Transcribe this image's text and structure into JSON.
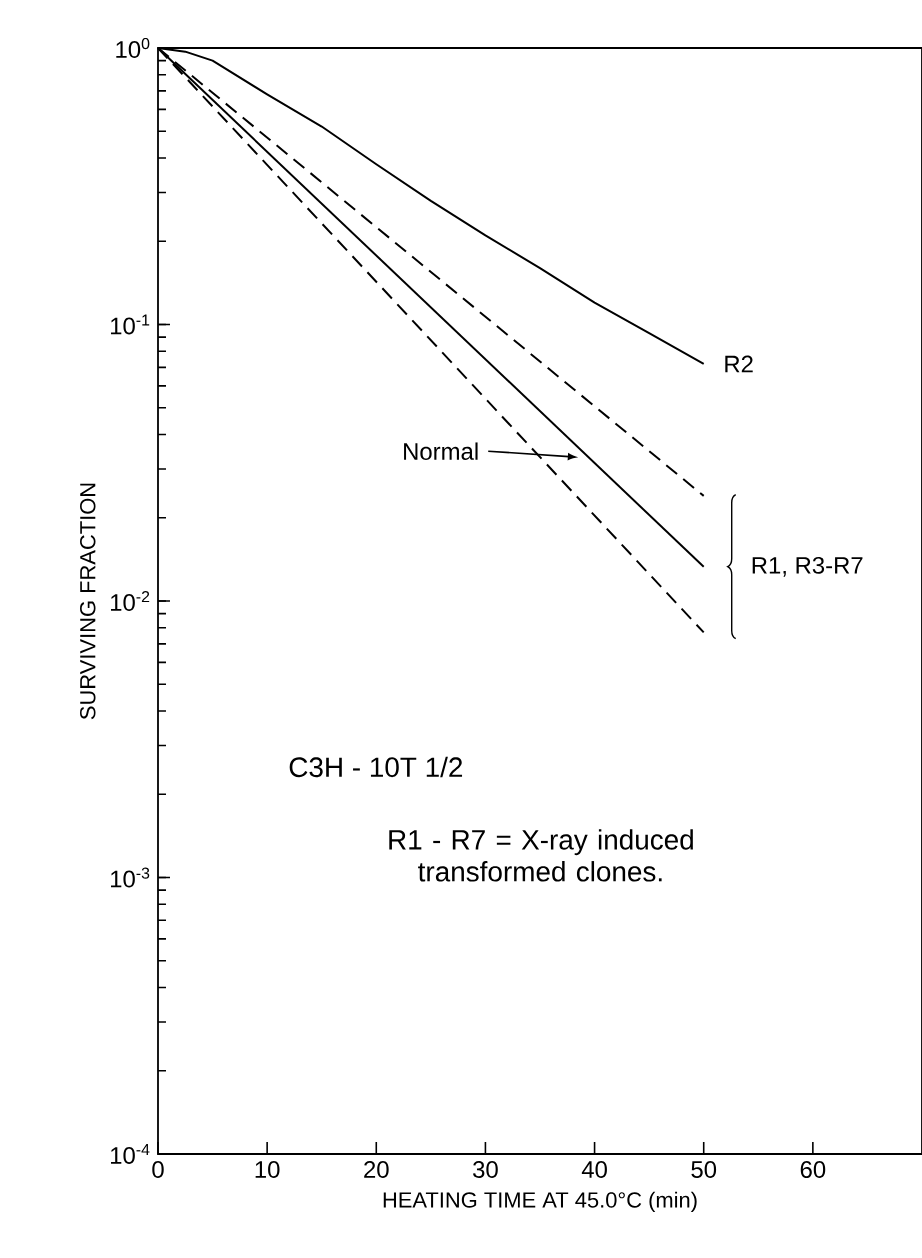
{
  "chart_data": {
    "type": "line",
    "xlabel": "HEATING TIME AT 45.0°C (min)",
    "ylabel": "SURVIVING FRACTION",
    "log": "y",
    "xlim": [
      0,
      70
    ],
    "ylim": [
      0.0001,
      1
    ],
    "xticks": [
      0,
      10,
      20,
      30,
      40,
      50,
      60
    ],
    "yticks": [
      {
        "value": 0.0001,
        "label": "10$^{-4}$"
      },
      {
        "value": 0.001,
        "label": "10$^{-3}$"
      },
      {
        "value": 0.01,
        "label": "10$^{-2}$"
      },
      {
        "value": 0.1,
        "label": "10$^{-1}$"
      },
      {
        "value": 1,
        "label": "10$^{0}$"
      }
    ],
    "series": [
      {
        "name": "R2",
        "color": "#000000",
        "line_style": "solid",
        "x": [
          0,
          2.5,
          5,
          10,
          15,
          20,
          25,
          30,
          35,
          40,
          45,
          50
        ],
        "values": [
          1,
          0.97,
          0.9,
          0.68,
          0.52,
          0.38,
          0.28,
          0.21,
          0.16,
          0.12,
          0.093,
          0.072
        ]
      },
      {
        "color": "#000000",
        "line_style": "dashed",
        "x": [
          0,
          50
        ],
        "values": [
          1,
          0.024
        ]
      },
      {
        "color": "#000000",
        "line_style": "solid",
        "x": [
          0,
          50
        ],
        "values": [
          1,
          0.0133
        ]
      },
      {
        "color": "#000000",
        "line_style": "dashed",
        "x": [
          0,
          50
        ],
        "values": [
          1,
          0.0077
        ]
      }
    ],
    "annotations": [
      "Normal",
      {
        "text": "R1, R3-R7",
        "x": 50,
        "y": 0.0133
      },
      "C3H - 10T 1/2",
      "R1 - R7 = X-ray induced transformed clones."
    ],
    "legend": false,
    "grid": false
  }
}
